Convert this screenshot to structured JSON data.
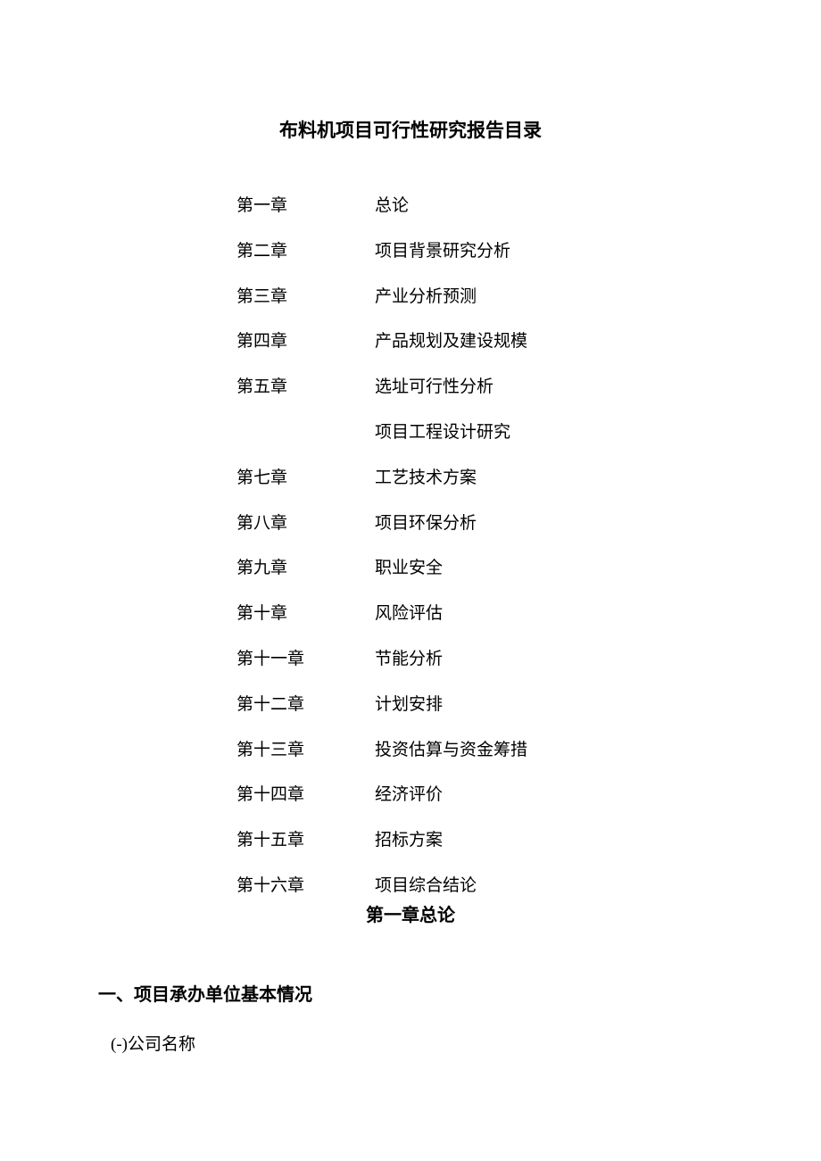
{
  "document": {
    "title": "布料机项目可行性研究报告目录",
    "text_color": "#000000",
    "background_color": "#ffffff"
  },
  "toc": {
    "items": [
      {
        "chapter": "第一章",
        "title": "总论"
      },
      {
        "chapter": "第二章",
        "title": "项目背景研究分析"
      },
      {
        "chapter": "第三章",
        "title": "产业分析预测"
      },
      {
        "chapter": "第四章",
        "title": "产品规划及建设规模"
      },
      {
        "chapter": "第五章",
        "title": "选址可行性分析"
      },
      {
        "chapter": "",
        "title": "项目工程设计研究"
      },
      {
        "chapter": "第七章",
        "title": "工艺技术方案"
      },
      {
        "chapter": "第八章",
        "title": "项目环保分析"
      },
      {
        "chapter": "第九章",
        "title": "职业安全"
      },
      {
        "chapter": "第十章",
        "title": "风险评估"
      },
      {
        "chapter": "第十一章",
        "title": "节能分析"
      },
      {
        "chapter": "第十二章",
        "title": "计划安排"
      },
      {
        "chapter": "第十三章",
        "title": "投资估算与资金筹措"
      },
      {
        "chapter": "第十四章",
        "title": "经济评价"
      },
      {
        "chapter": "第十五章",
        "title": "招标方案"
      },
      {
        "chapter": "第十六章",
        "title": "项目综合结论"
      }
    ]
  },
  "chapter_heading": "第一章总论",
  "section_heading": "一、项目承办单位基本情况",
  "subsection": "(-)公司名称"
}
